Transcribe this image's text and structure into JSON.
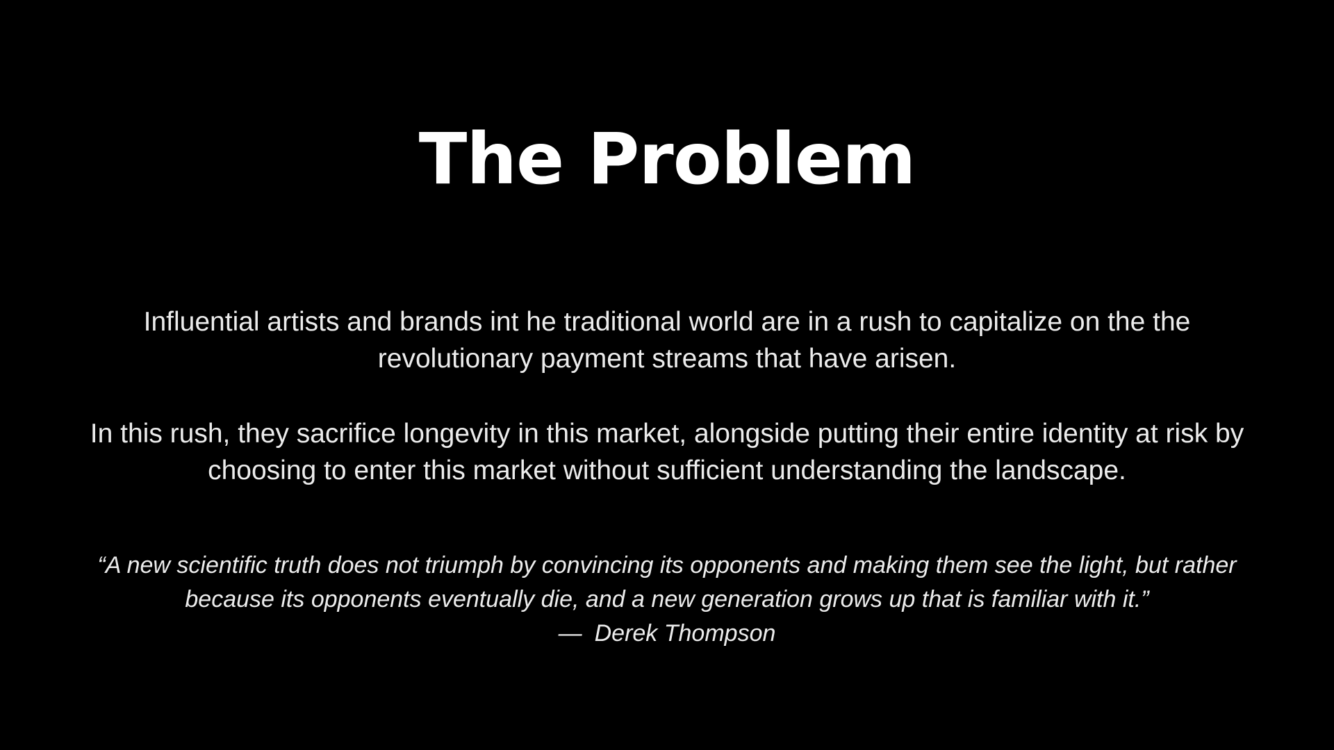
{
  "slide": {
    "title": "The Problem",
    "paragraph_1": "Influential artists and brands int he traditional world are in a rush to capitalize on the the revolutionary payment streams that have arisen.",
    "paragraph_2": "In this rush, they sacrifice longevity in this market, alongside putting their entire identity at risk by choosing to enter this market without sufficient understanding the landscape.",
    "quote": "“A new scientific truth does not triumph by convincing its opponents and making them see the light, but rather because its opponents eventually die, and a new generation grows up that is familiar with it.”",
    "attribution_dash": "—",
    "attribution_name": "Derek Thompson"
  },
  "colors": {
    "background": "#000000",
    "title": "#ffffff",
    "text": "#ececec"
  }
}
